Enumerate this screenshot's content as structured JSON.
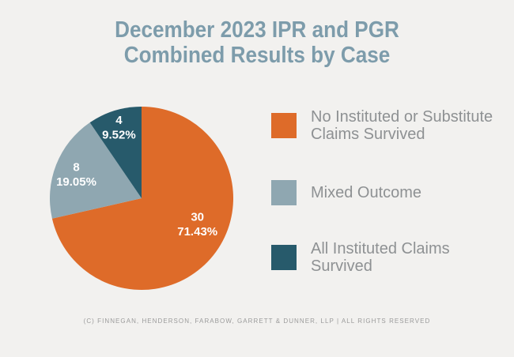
{
  "title": {
    "line1": "December 2023 IPR and PGR",
    "line2": "Combined Results by Case"
  },
  "chart_data": {
    "type": "pie",
    "title": "December 2023 IPR and PGR Combined Results by Case",
    "start_angle_deg": 0,
    "direction": "clockwise",
    "legend_position": "right",
    "slices": [
      {
        "label": "No Instituted or Substitute Claims Survived",
        "value": 30,
        "pct": "71.43%",
        "color": "#DE6B29"
      },
      {
        "label": "Mixed Outcome",
        "value": 8,
        "pct": "19.05%",
        "color": "#8FA7B1"
      },
      {
        "label": "All Instituted Claims Survived",
        "value": 4,
        "pct": "9.52%",
        "color": "#275A6B"
      }
    ]
  },
  "footer": {
    "text": "(C) FINNEGAN, HENDERSON, FARABOW, GARRETT & DUNNER, LLP | ALL RIGHTS RESERVED"
  }
}
